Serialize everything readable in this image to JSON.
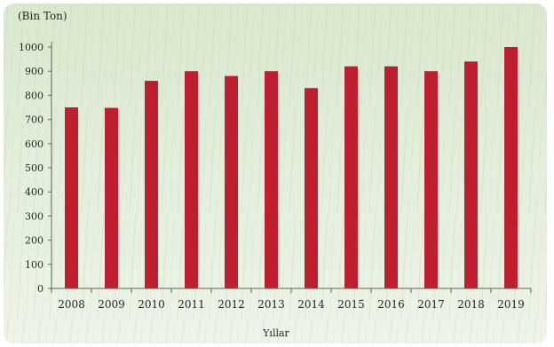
{
  "chart_data": {
    "type": "bar",
    "title": "",
    "ylabel": "(Bin Ton)",
    "xlabel": "Yıllar",
    "categories": [
      "2008",
      "2009",
      "2010",
      "2011",
      "2012",
      "2013",
      "2014",
      "2015",
      "2016",
      "2017",
      "2018",
      "2019"
    ],
    "values": [
      750,
      748,
      860,
      900,
      880,
      900,
      830,
      920,
      920,
      900,
      940,
      1000
    ],
    "ylim": [
      0,
      1000
    ],
    "yticks": [
      "0",
      "100",
      "200",
      "300",
      "400",
      "500",
      "600",
      "700",
      "800",
      "900",
      "1000"
    ],
    "grid": false,
    "legend": "none",
    "colors": {
      "bar": "#bf1e2e",
      "background_top": "#d9e8cf",
      "background_bottom": "#eef4e8",
      "axis": "#5a6a55",
      "text": "#1e2a1e"
    }
  }
}
